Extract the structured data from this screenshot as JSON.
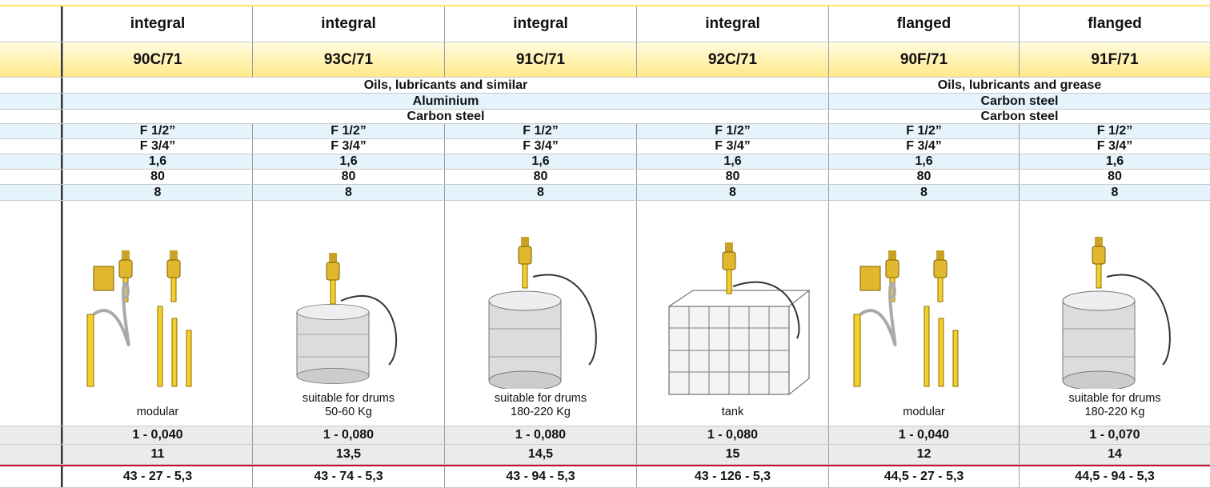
{
  "table": {
    "mounting": [
      "integral",
      "integral",
      "integral",
      "integral",
      "flanged",
      "flanged"
    ],
    "models": [
      "90C/71",
      "93C/71",
      "91C/71",
      "92C/71",
      "90F/71",
      "91F/71"
    ],
    "fluid": [
      "Oils, lubricants and similar",
      "Oils, lubricants and grease"
    ],
    "material": [
      "Aluminium",
      "Carbon steel"
    ],
    "tube": [
      "Carbon steel",
      "Carbon steel"
    ],
    "inlet": [
      "F 1/2”",
      "F 1/2”",
      "F 1/2”",
      "F 1/2”",
      "F 1/2”",
      "F 1/2”"
    ],
    "outlet": [
      "F 3/4”",
      "F 3/4”",
      "F 3/4”",
      "F 3/4”",
      "F 3/4”",
      "F 3/4”"
    ],
    "ratio": [
      "1,6",
      "1,6",
      "1,6",
      "1,6",
      "1,6",
      "1,6"
    ],
    "pressure": [
      "80",
      "80",
      "80",
      "80",
      "80",
      "80"
    ],
    "flow": [
      "8",
      "8",
      "8",
      "8",
      "8",
      "8"
    ],
    "application": [
      [
        "modular"
      ],
      [
        "suitable for drums",
        "50-60 Kg"
      ],
      [
        "suitable for drums",
        "180-220 Kg"
      ],
      [
        "tank"
      ],
      [
        "modular"
      ],
      [
        "suitable for drums",
        "180-220 Kg"
      ]
    ],
    "delivery": [
      "1 - 0,040",
      "1 - 0,080",
      "1 - 0,080",
      "1 - 0,080",
      "1 - 0,040",
      "1 - 0,070"
    ],
    "weight": [
      "11",
      "13,5",
      "14,5",
      "15",
      "12",
      "14"
    ],
    "dimensions": [
      "43 - 27 - 5,3",
      "43 - 74 - 5,3",
      "43 - 94 - 5,3",
      "43 - 126 - 5,3",
      "44,5 - 27 - 5,3",
      "44,5 - 94 - 5,3"
    ]
  }
}
